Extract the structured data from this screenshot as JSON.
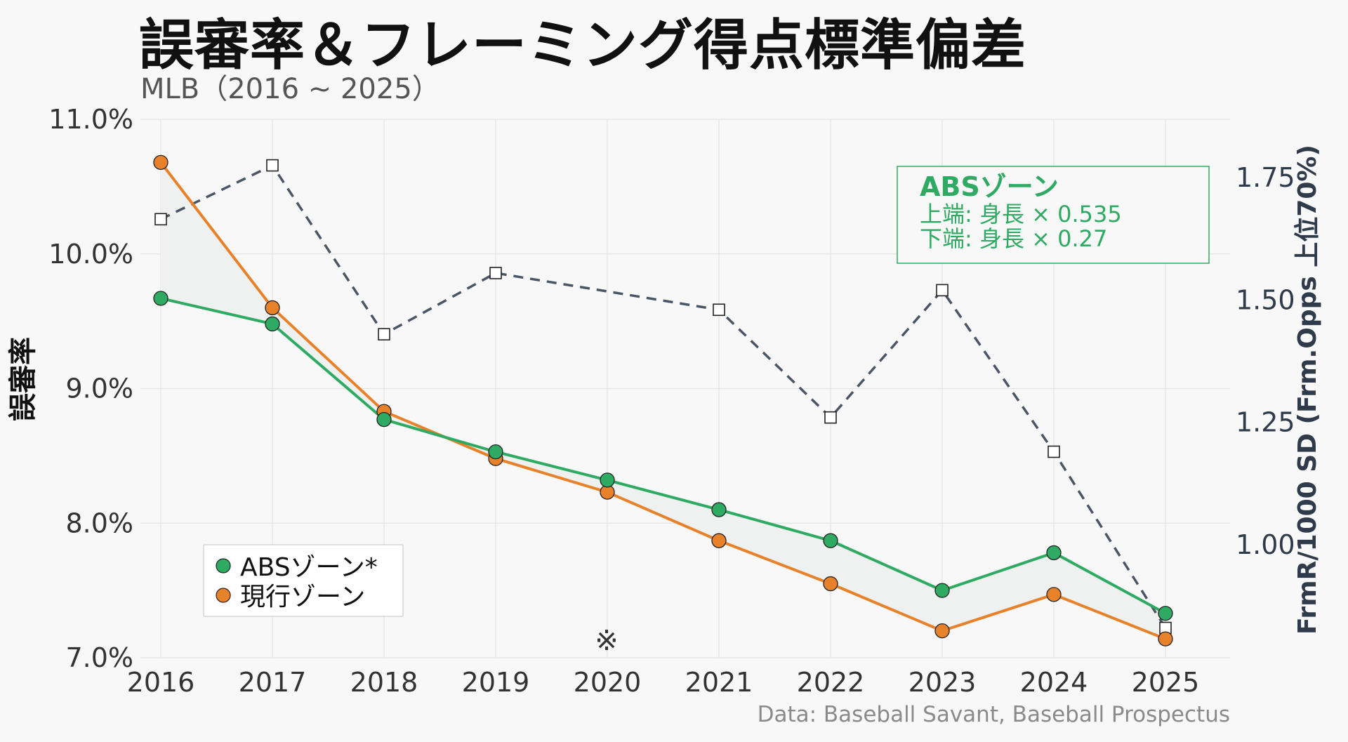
{
  "title": "誤審率＆フレーミング得点標準偏差",
  "subtitle": "MLB（2016 ~ 2025）",
  "source": "Data: Baseball Savant, Baseball Prospectus",
  "colors": {
    "abs": "#2eaa62",
    "current": "#e8822a",
    "frmr": "#4a5566",
    "fill": "#eef1ef"
  },
  "annotation": {
    "title": "ABSゾーン",
    "line1": "上端: 身長 × 0.535",
    "line2": "下端: 身長 × 0.27"
  },
  "note_mark": "※",
  "chart_data": {
    "type": "line",
    "xlabel": "",
    "ylabel": "誤審率",
    "y2label": "FrmR/1000 SD (Frm.Opps 上位70%)",
    "categories": [
      "2016",
      "2017",
      "2018",
      "2019",
      "2020",
      "2021",
      "2022",
      "2023",
      "2024",
      "2025"
    ],
    "ylim": [
      7.0,
      11.0
    ],
    "yticks": [
      "7.0%",
      "8.0%",
      "9.0%",
      "10.0%",
      "11.0%"
    ],
    "ytick_values": [
      7.0,
      8.0,
      9.0,
      10.0,
      11.0
    ],
    "y2lim": [
      0.78,
      1.89
    ],
    "y2ticks": [
      "1.00",
      "1.25",
      "1.50",
      "1.75"
    ],
    "y2tick_values": [
      1.0,
      1.25,
      1.5,
      1.75
    ],
    "grid": true,
    "legend_position": "bottom-left",
    "series": [
      {
        "name": "ABSゾーン*",
        "axis": "left",
        "values": [
          9.67,
          9.48,
          8.77,
          8.53,
          8.32,
          8.1,
          7.87,
          7.5,
          7.78,
          7.33
        ]
      },
      {
        "name": "現行ゾーン",
        "axis": "left",
        "values": [
          10.68,
          9.6,
          8.83,
          8.48,
          8.23,
          7.87,
          7.55,
          7.2,
          7.47,
          7.14
        ]
      },
      {
        "axis": "right",
        "style": "dashed",
        "values": [
          1.665,
          1.775,
          1.43,
          1.555,
          null,
          1.48,
          1.26,
          1.52,
          1.19,
          0.83
        ]
      }
    ]
  }
}
